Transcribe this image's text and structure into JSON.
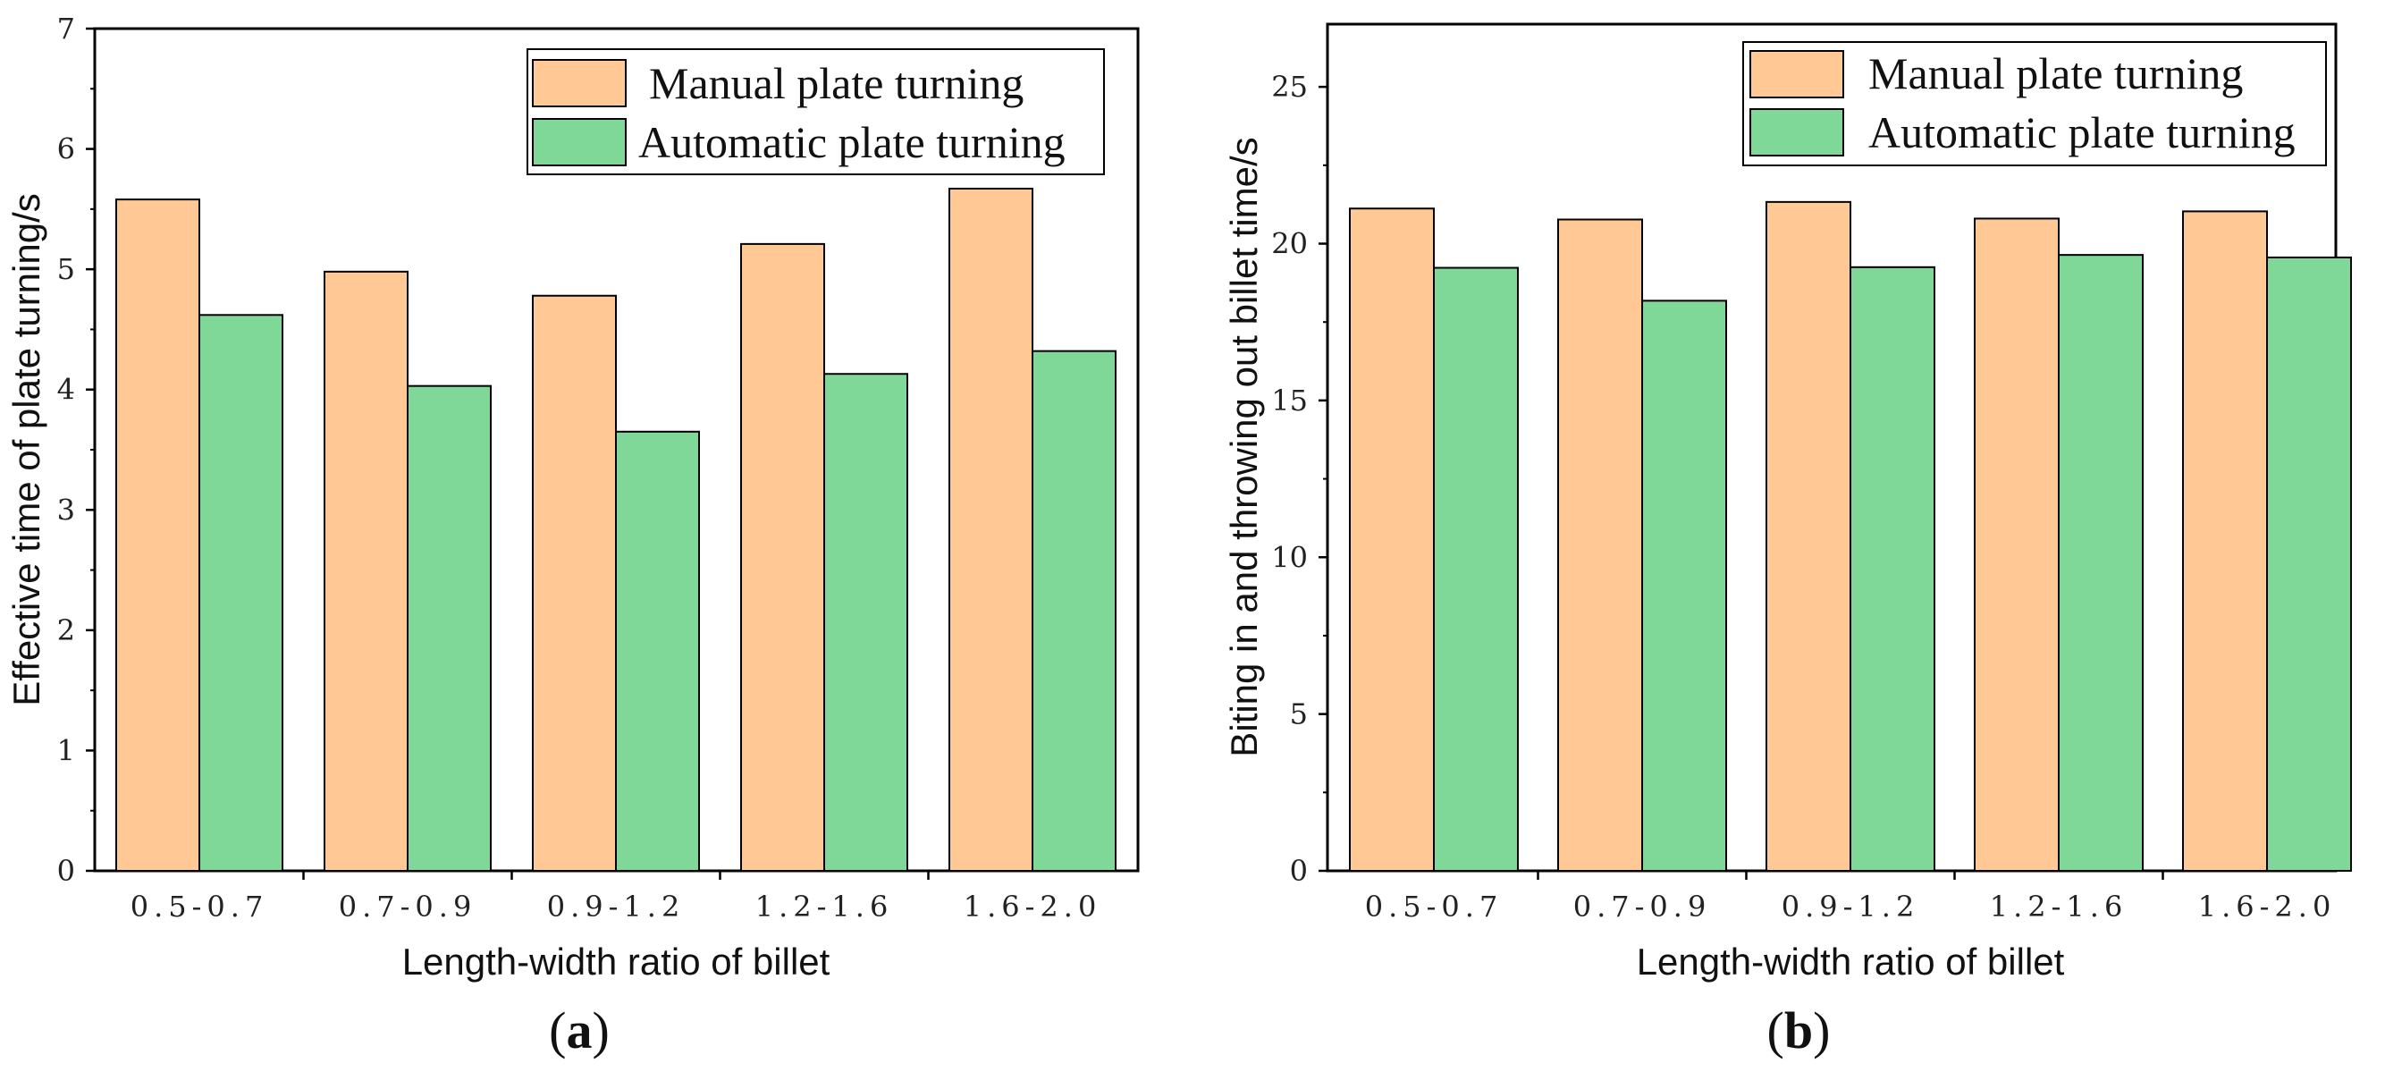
{
  "chart_data": [
    {
      "type": "bar",
      "panel": "a",
      "title": "",
      "xlabel": "Length-width ratio of billet",
      "ylabel": "Effective time of plate turning/s",
      "categories": [
        "0.5-0.7",
        "0.7-0.9",
        "0.9-1.2",
        "1.2-1.6",
        "1.6-2.0"
      ],
      "series": [
        {
          "name": "Manual plate turning",
          "values": [
            5.58,
            4.98,
            4.78,
            5.21,
            5.67
          ]
        },
        {
          "name": "Automatic plate turning",
          "values": [
            4.62,
            4.03,
            3.65,
            4.13,
            4.32
          ]
        }
      ],
      "ylim": [
        0,
        7
      ],
      "yticks": [
        0,
        1,
        2,
        3,
        4,
        5,
        6,
        7
      ],
      "legend": "top-right",
      "grid": false
    },
    {
      "type": "bar",
      "panel": "b",
      "title": "",
      "xlabel": "Length-width ratio of billet",
      "ylabel": "Biting in and throwing out billet time/s",
      "categories": [
        "0.5-0.7",
        "0.7-0.9",
        "0.9-1.2",
        "1.2-1.6",
        "1.6-2.0"
      ],
      "series": [
        {
          "name": "Manual plate turning",
          "values": [
            21.12,
            20.77,
            21.33,
            20.8,
            21.03
          ]
        },
        {
          "name": "Automatic plate turning",
          "values": [
            19.23,
            18.18,
            19.25,
            19.64,
            19.56
          ]
        }
      ],
      "ylim": [
        0,
        27
      ],
      "yticks": [
        0,
        5,
        10,
        15,
        20,
        25
      ],
      "legend": "top-right",
      "grid": false
    }
  ],
  "colors": {
    "manual": "#ffc894",
    "automatic": "#7fd798",
    "axis": "#000000"
  },
  "panel_labels": {
    "a": {
      "open": "(",
      "letter": "a",
      "close": ")"
    },
    "b": {
      "open": "(",
      "letter": "b",
      "close": ")"
    }
  },
  "x_tick_labels_display": [
    "0. 5-0. 7",
    "0. 7-0. 9",
    "0. 9-1. 2",
    "1. 2-1. 6",
    "1. 6-2. 0"
  ]
}
